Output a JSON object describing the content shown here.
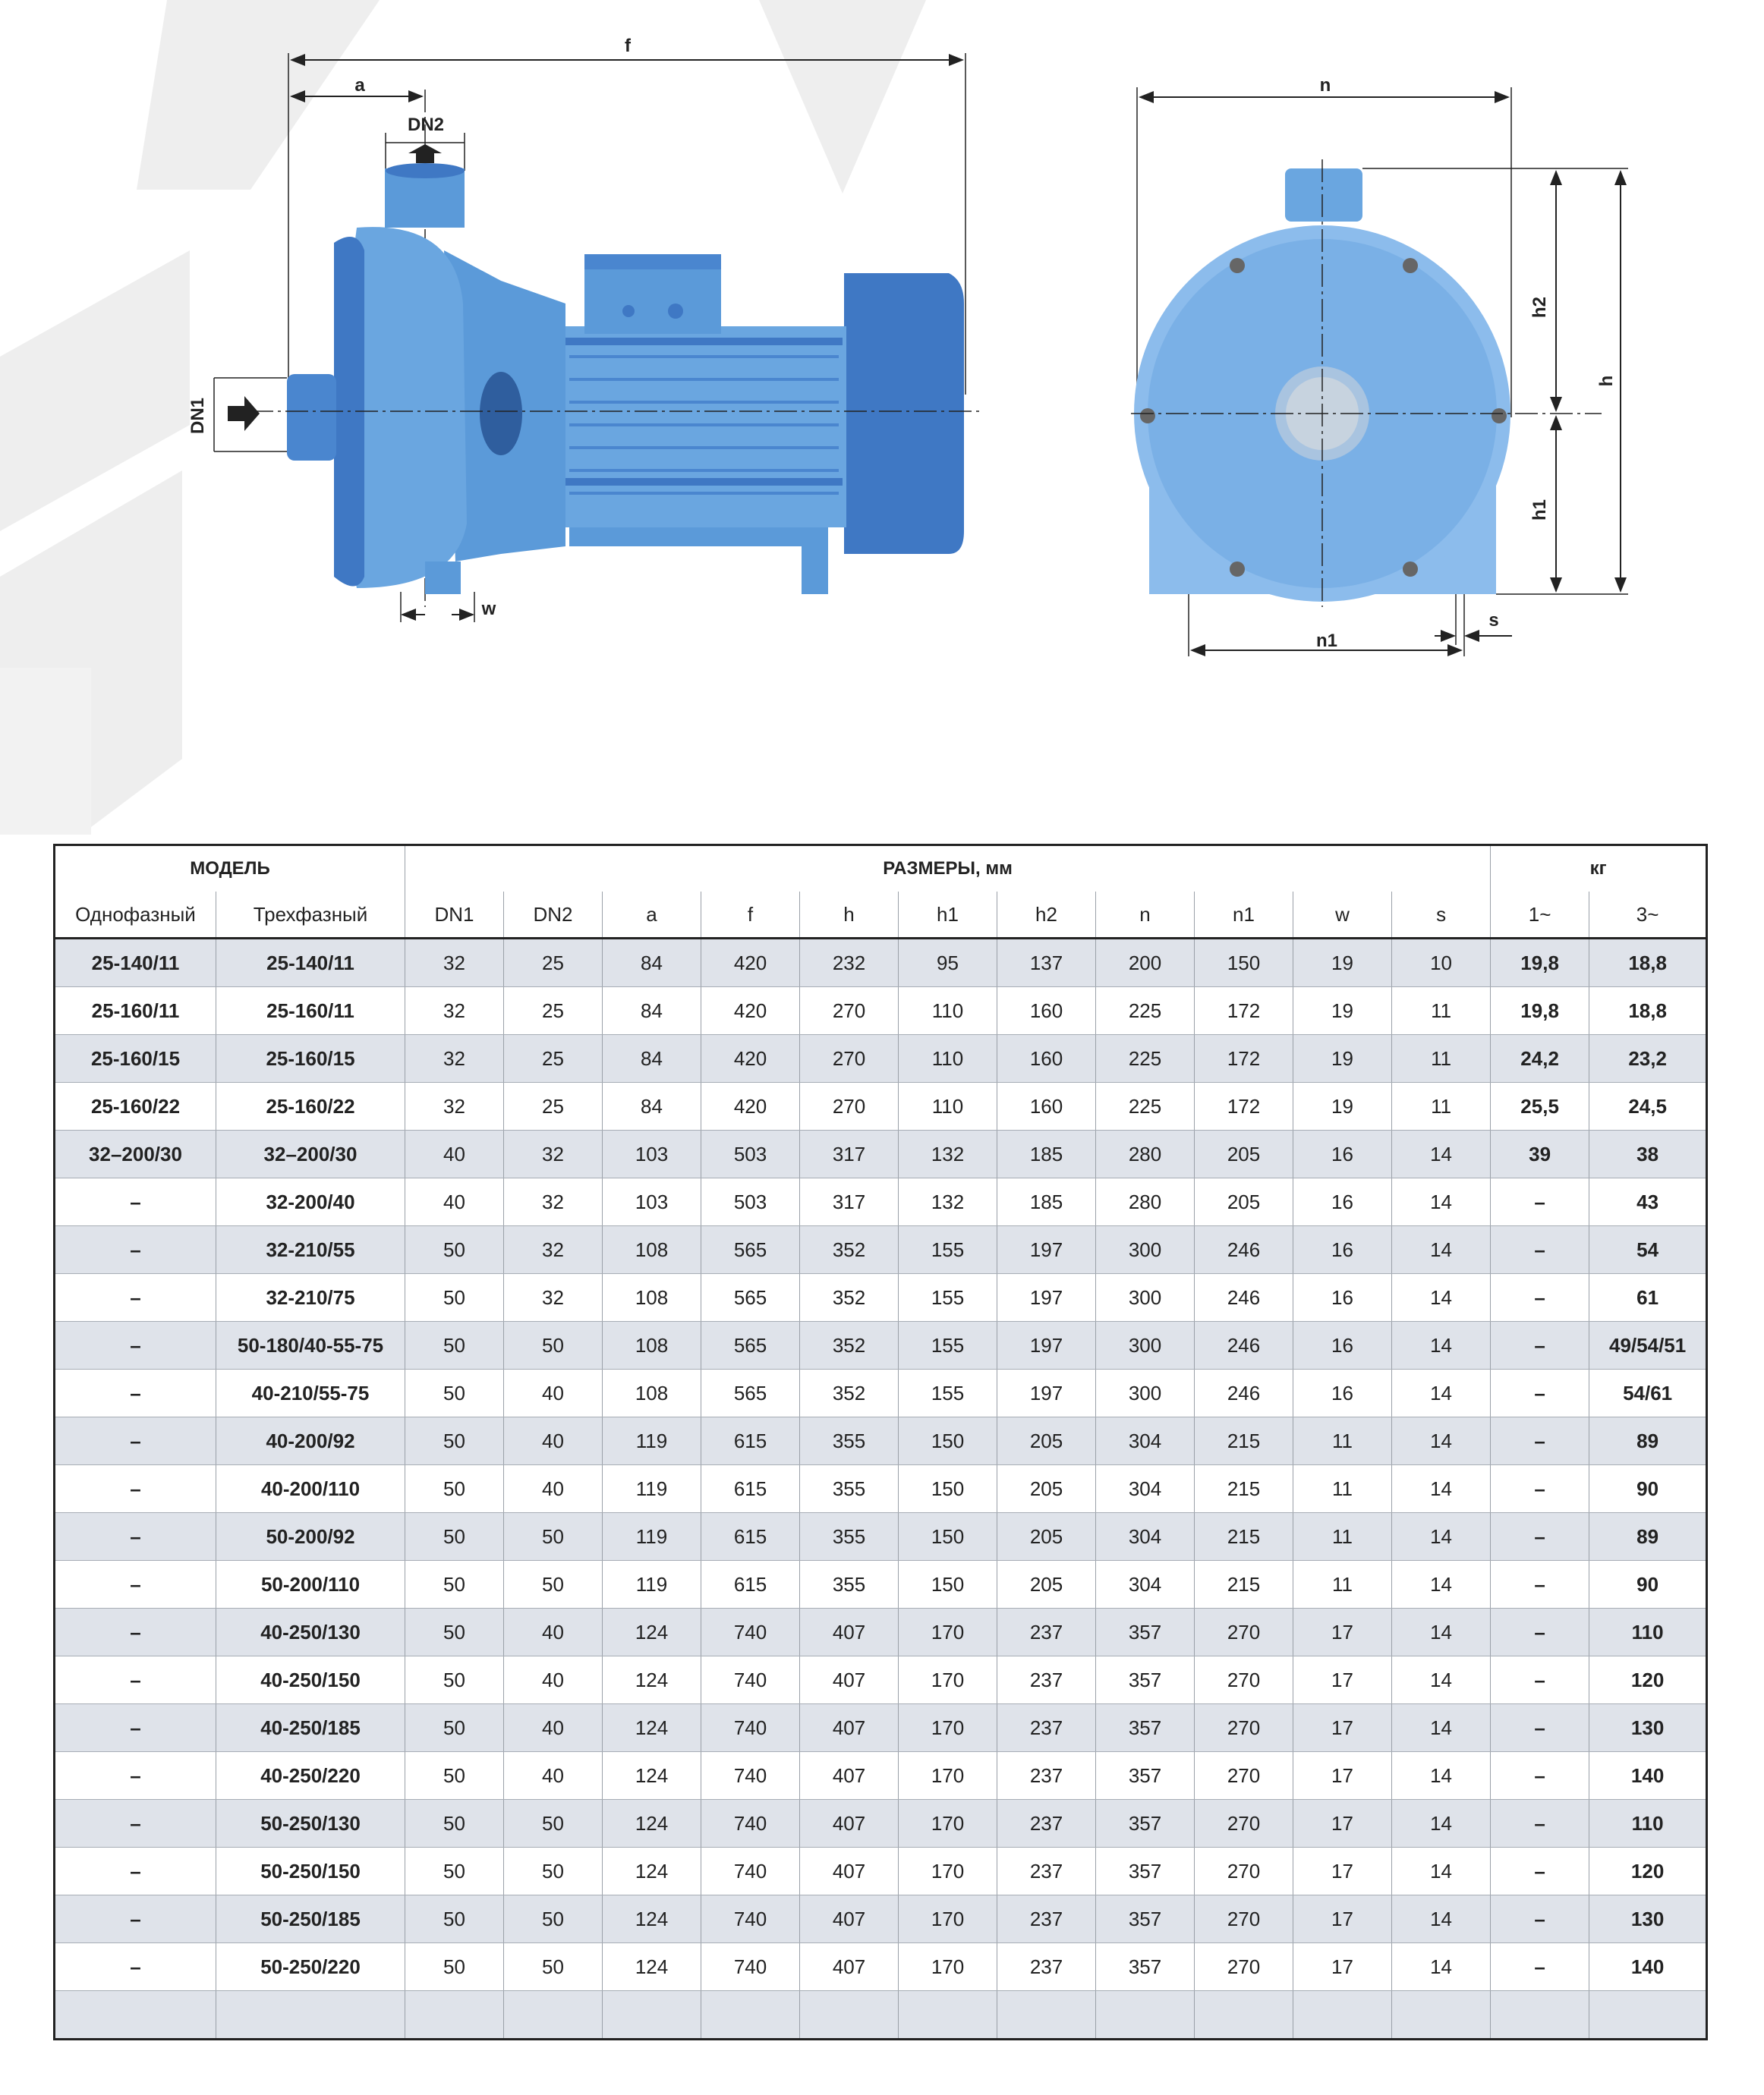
{
  "drawing_labels": {
    "f": "f",
    "a": "a",
    "dn2": "DN2",
    "dn1": "DN1",
    "w": "w",
    "n": "n",
    "h2": "h2",
    "h": "h",
    "h1": "h1",
    "s": "s",
    "n1": "n1"
  },
  "colors": {
    "pump_blue": "#6aa6e0",
    "pump_dark": "#3f78c4",
    "row_shade": "#dfe3ea",
    "watermark": "#eeeeee"
  },
  "table": {
    "group_headers": {
      "model": "МОДЕЛЬ",
      "dimensions": "РАЗМЕРЫ, мм",
      "weight": "кг"
    },
    "columns": [
      "Однофазный",
      "Трехфазный",
      "DN1",
      "DN2",
      "a",
      "f",
      "h",
      "h1",
      "h2",
      "n",
      "n1",
      "w",
      "s",
      "1~",
      "3~"
    ],
    "rows": [
      [
        "25-140/11",
        "25-140/11",
        "32",
        "25",
        "84",
        "420",
        "232",
        "95",
        "137",
        "200",
        "150",
        "19",
        "10",
        "19,8",
        "18,8"
      ],
      [
        "25-160/11",
        "25-160/11",
        "32",
        "25",
        "84",
        "420",
        "270",
        "110",
        "160",
        "225",
        "172",
        "19",
        "11",
        "19,8",
        "18,8"
      ],
      [
        "25-160/15",
        "25-160/15",
        "32",
        "25",
        "84",
        "420",
        "270",
        "110",
        "160",
        "225",
        "172",
        "19",
        "11",
        "24,2",
        "23,2"
      ],
      [
        "25-160/22",
        "25-160/22",
        "32",
        "25",
        "84",
        "420",
        "270",
        "110",
        "160",
        "225",
        "172",
        "19",
        "11",
        "25,5",
        "24,5"
      ],
      [
        "32–200/30",
        "32–200/30",
        "40",
        "32",
        "103",
        "503",
        "317",
        "132",
        "185",
        "280",
        "205",
        "16",
        "14",
        "39",
        "38"
      ],
      [
        "–",
        "32-200/40",
        "40",
        "32",
        "103",
        "503",
        "317",
        "132",
        "185",
        "280",
        "205",
        "16",
        "14",
        "–",
        "43"
      ],
      [
        "–",
        "32-210/55",
        "50",
        "32",
        "108",
        "565",
        "352",
        "155",
        "197",
        "300",
        "246",
        "16",
        "14",
        "–",
        "54"
      ],
      [
        "–",
        "32-210/75",
        "50",
        "32",
        "108",
        "565",
        "352",
        "155",
        "197",
        "300",
        "246",
        "16",
        "14",
        "–",
        "61"
      ],
      [
        "–",
        "50-180/40-55-75",
        "50",
        "50",
        "108",
        "565",
        "352",
        "155",
        "197",
        "300",
        "246",
        "16",
        "14",
        "–",
        "49/54/51"
      ],
      [
        "–",
        "40-210/55-75",
        "50",
        "40",
        "108",
        "565",
        "352",
        "155",
        "197",
        "300",
        "246",
        "16",
        "14",
        "–",
        "54/61"
      ],
      [
        "–",
        "40-200/92",
        "50",
        "40",
        "119",
        "615",
        "355",
        "150",
        "205",
        "304",
        "215",
        "11",
        "14",
        "–",
        "89"
      ],
      [
        "–",
        "40-200/110",
        "50",
        "40",
        "119",
        "615",
        "355",
        "150",
        "205",
        "304",
        "215",
        "11",
        "14",
        "–",
        "90"
      ],
      [
        "–",
        "50-200/92",
        "50",
        "50",
        "119",
        "615",
        "355",
        "150",
        "205",
        "304",
        "215",
        "11",
        "14",
        "–",
        "89"
      ],
      [
        "–",
        "50-200/110",
        "50",
        "50",
        "119",
        "615",
        "355",
        "150",
        "205",
        "304",
        "215",
        "11",
        "14",
        "–",
        "90"
      ],
      [
        "–",
        "40-250/130",
        "50",
        "40",
        "124",
        "740",
        "407",
        "170",
        "237",
        "357",
        "270",
        "17",
        "14",
        "–",
        "110"
      ],
      [
        "–",
        "40-250/150",
        "50",
        "40",
        "124",
        "740",
        "407",
        "170",
        "237",
        "357",
        "270",
        "17",
        "14",
        "–",
        "120"
      ],
      [
        "–",
        "40-250/185",
        "50",
        "40",
        "124",
        "740",
        "407",
        "170",
        "237",
        "357",
        "270",
        "17",
        "14",
        "–",
        "130"
      ],
      [
        "–",
        "40-250/220",
        "50",
        "40",
        "124",
        "740",
        "407",
        "170",
        "237",
        "357",
        "270",
        "17",
        "14",
        "–",
        "140"
      ],
      [
        "–",
        "50-250/130",
        "50",
        "50",
        "124",
        "740",
        "407",
        "170",
        "237",
        "357",
        "270",
        "17",
        "14",
        "–",
        "110"
      ],
      [
        "–",
        "50-250/150",
        "50",
        "50",
        "124",
        "740",
        "407",
        "170",
        "237",
        "357",
        "270",
        "17",
        "14",
        "–",
        "120"
      ],
      [
        "–",
        "50-250/185",
        "50",
        "50",
        "124",
        "740",
        "407",
        "170",
        "237",
        "357",
        "270",
        "17",
        "14",
        "–",
        "130"
      ],
      [
        "–",
        "50-250/220",
        "50",
        "50",
        "124",
        "740",
        "407",
        "170",
        "237",
        "357",
        "270",
        "17",
        "14",
        "–",
        "140"
      ]
    ]
  }
}
